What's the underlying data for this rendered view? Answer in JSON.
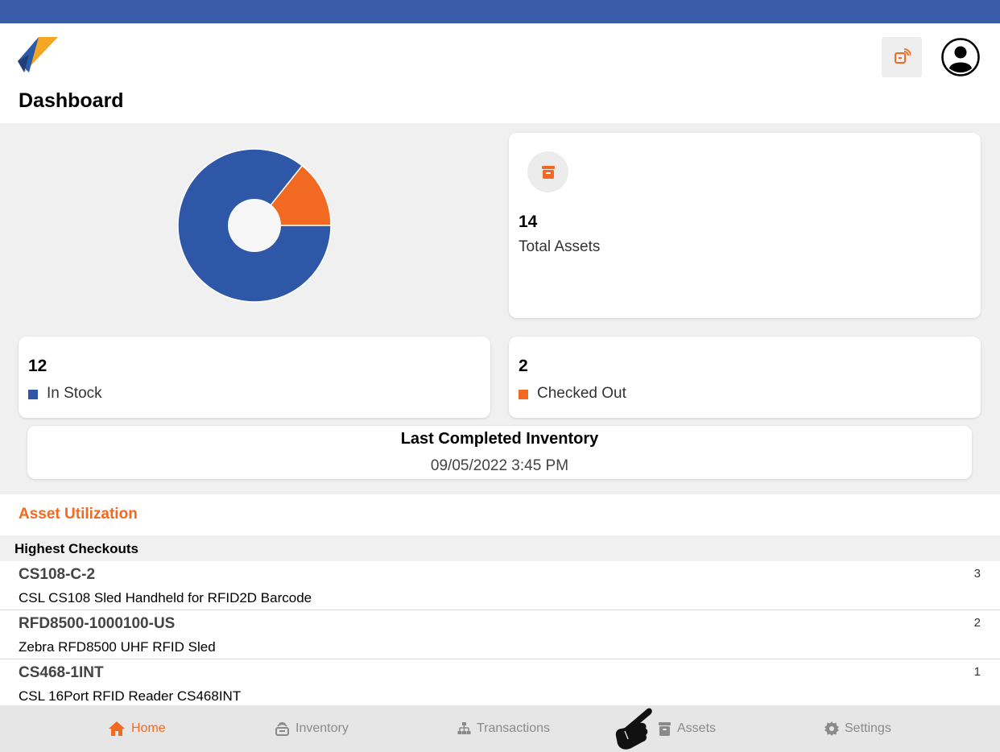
{
  "header": {
    "title": "Dashboard"
  },
  "chart_data": {
    "type": "pie",
    "categories": [
      "In Stock",
      "Checked Out"
    ],
    "values": [
      12,
      2
    ],
    "colors": [
      "#2f57a8",
      "#f26a21"
    ],
    "donut": true
  },
  "cards": {
    "total": {
      "value": "14",
      "label": "Total Assets"
    },
    "in_stock": {
      "value": "12",
      "label": "In Stock",
      "color": "#2f57a8"
    },
    "checked_out": {
      "value": "2",
      "label": "Checked Out",
      "color": "#f26a21"
    },
    "last_inventory": {
      "title": "Last Completed Inventory",
      "date": "09/05/2022 3:45 PM"
    }
  },
  "utilization": {
    "title": "Asset Utilization",
    "section": "Highest Checkouts",
    "items": [
      {
        "id": "CS108-C-2",
        "desc": "CSL CS108 Sled Handheld for RFID2D Barcode",
        "count": "3"
      },
      {
        "id": "RFD8500-1000100-US",
        "desc": "Zebra RFD8500 UHF RFID Sled",
        "count": "2"
      },
      {
        "id": "CS468-1INT",
        "desc": "CSL 16Port RFID Reader CS468INT",
        "count": "1"
      }
    ]
  },
  "tabs": [
    {
      "label": "Home",
      "icon": "home-icon",
      "active": true
    },
    {
      "label": "Inventory",
      "icon": "inventory-icon",
      "active": false
    },
    {
      "label": "Transactions",
      "icon": "transactions-icon",
      "active": false
    },
    {
      "label": "Assets",
      "icon": "assets-icon",
      "active": false
    },
    {
      "label": "Settings",
      "icon": "settings-icon",
      "active": false
    }
  ],
  "colors": {
    "accent": "#f26a21",
    "primary": "#2f57a8",
    "status_bar": "#3a5ba8"
  }
}
